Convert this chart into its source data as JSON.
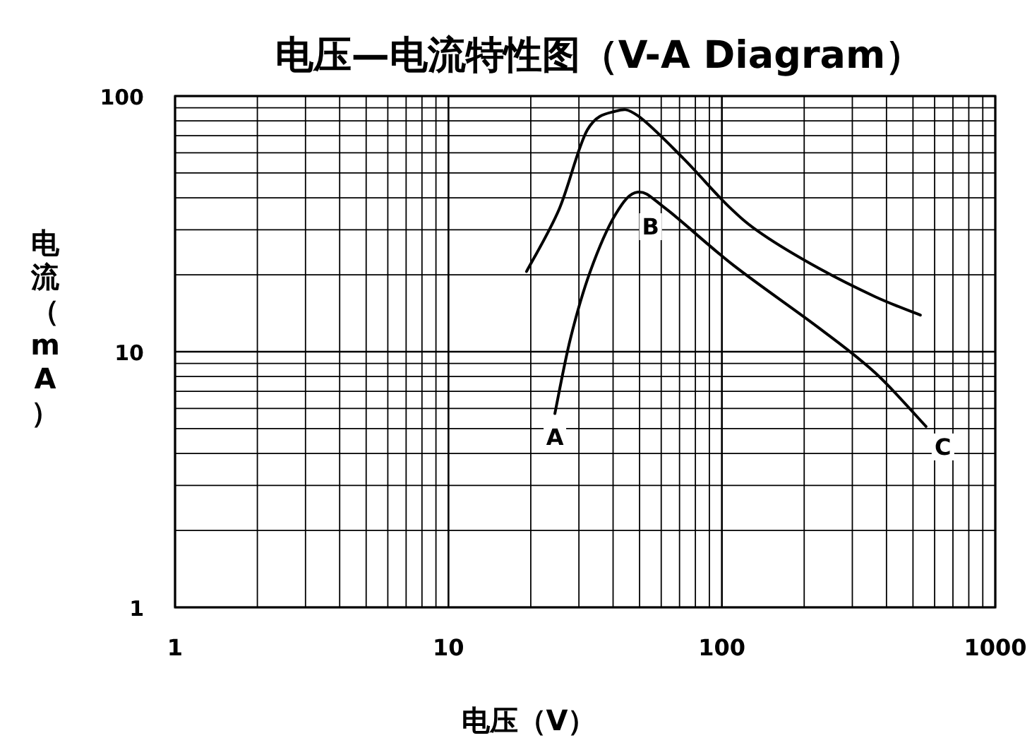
{
  "chart_data": {
    "type": "line",
    "title": "电压—电流特性图（V-A Diagram）",
    "xlabel": "电压（V）",
    "ylabel": "电流（mA）",
    "log": "xy",
    "grid": true,
    "marker": "none",
    "line_style": "solid",
    "xlim": [
      1,
      1000
    ],
    "ylim": [
      1,
      100
    ],
    "xticks": [
      1,
      10,
      100,
      1000
    ],
    "yticks": [
      1,
      10,
      100
    ],
    "series": [
      {
        "color": "#000000",
        "x": [
          19.3,
          25.4,
          32.2,
          40.8,
          49.3,
          72.2,
          105.6,
          140.6,
          226,
          364,
          532
        ],
        "values": [
          20.6,
          36.1,
          73.7,
          87.2,
          83.7,
          57.1,
          37.1,
          28.8,
          21.2,
          16.4,
          13.9
        ]
      },
      {
        "color": "#000000",
        "x": [
          24.5,
          27.9,
          33.0,
          40.8,
          49.3,
          62.7,
          110.7,
          226,
          364,
          558
        ],
        "values": [
          5.73,
          11.2,
          20.6,
          34.4,
          42.1,
          36.1,
          21.7,
          12.4,
          8.26,
          5.1
        ]
      }
    ],
    "annotations": [
      {
        "text": "A",
        "x": 24.5,
        "y": 5.73
      },
      {
        "text": "B",
        "x": 49.3,
        "y": 42.1
      },
      {
        "text": "C",
        "x": 558,
        "y": 5.1
      }
    ]
  }
}
